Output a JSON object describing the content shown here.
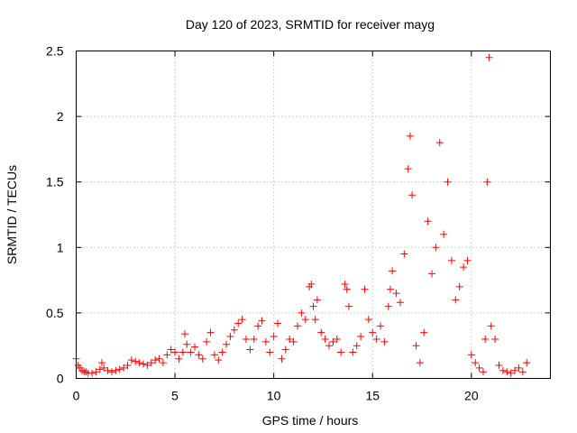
{
  "chart_data": {
    "type": "scatter",
    "title": "Day 120 of 2023, SRMTID for receiver mayg",
    "xlabel": "GPS time / hours",
    "ylabel": "SRMTID / TECUs",
    "xlim": [
      0,
      24
    ],
    "ylim": [
      0,
      2.5
    ],
    "xticks": [
      0,
      5,
      10,
      15,
      20
    ],
    "yticks": [
      0,
      0.5,
      1,
      1.5,
      2,
      2.5
    ],
    "xtick_labels": [
      "0",
      "5",
      "10",
      "15",
      "20"
    ],
    "ytick_labels": [
      "0",
      "0.5",
      "1",
      "1.5",
      "2",
      "2.5"
    ],
    "grid": true,
    "marker": "+",
    "color": "#ff0000",
    "series": [
      {
        "name": "SRMTID",
        "x": [
          0.0,
          0.1,
          0.2,
          0.3,
          0.4,
          0.5,
          0.6,
          0.8,
          1.0,
          1.2,
          1.3,
          1.4,
          1.6,
          1.8,
          2.0,
          2.2,
          2.4,
          2.6,
          2.8,
          3.0,
          3.2,
          3.4,
          3.6,
          3.8,
          4.0,
          4.2,
          4.4,
          4.6,
          4.8,
          5.0,
          5.2,
          5.4,
          5.5,
          5.6,
          5.8,
          6.0,
          6.2,
          6.4,
          6.6,
          6.8,
          7.0,
          7.2,
          7.4,
          7.6,
          7.8,
          8.0,
          8.2,
          8.4,
          8.6,
          8.8,
          9.0,
          9.2,
          9.4,
          9.6,
          9.8,
          10.0,
          10.2,
          10.4,
          10.6,
          10.8,
          11.0,
          11.2,
          11.4,
          11.6,
          11.8,
          11.9,
          12.0,
          12.1,
          12.2,
          12.4,
          12.6,
          12.8,
          13.0,
          13.2,
          13.4,
          13.6,
          13.7,
          13.8,
          14.0,
          14.2,
          14.4,
          14.6,
          14.8,
          15.0,
          15.2,
          15.4,
          15.6,
          15.8,
          15.9,
          16.0,
          16.2,
          16.4,
          16.6,
          16.8,
          16.9,
          17.0,
          17.2,
          17.4,
          17.6,
          17.8,
          18.0,
          18.2,
          18.4,
          18.6,
          18.8,
          19.0,
          19.2,
          19.4,
          19.6,
          19.8,
          20.0,
          20.2,
          20.4,
          20.6,
          20.7,
          20.8,
          20.9,
          21.0,
          21.2,
          21.4,
          21.6,
          21.8,
          22.0,
          22.2,
          22.4,
          22.6,
          22.8
        ],
        "y": [
          0.15,
          0.1,
          0.08,
          0.06,
          0.05,
          0.05,
          0.04,
          0.04,
          0.05,
          0.07,
          0.12,
          0.08,
          0.06,
          0.05,
          0.06,
          0.07,
          0.08,
          0.1,
          0.14,
          0.13,
          0.12,
          0.11,
          0.1,
          0.12,
          0.14,
          0.15,
          0.12,
          0.18,
          0.22,
          0.2,
          0.15,
          0.2,
          0.34,
          0.26,
          0.2,
          0.24,
          0.18,
          0.15,
          0.28,
          0.35,
          0.18,
          0.14,
          0.2,
          0.26,
          0.32,
          0.37,
          0.42,
          0.45,
          0.3,
          0.22,
          0.3,
          0.4,
          0.44,
          0.28,
          0.2,
          0.32,
          0.42,
          0.15,
          0.22,
          0.3,
          0.28,
          0.4,
          0.5,
          0.45,
          0.7,
          0.72,
          0.55,
          0.45,
          0.6,
          0.35,
          0.3,
          0.25,
          0.28,
          0.3,
          0.2,
          0.72,
          0.68,
          0.55,
          0.2,
          0.25,
          0.32,
          0.68,
          0.45,
          0.35,
          0.3,
          0.4,
          0.28,
          0.55,
          0.68,
          0.82,
          0.65,
          0.58,
          0.95,
          1.6,
          1.85,
          1.4,
          0.25,
          0.12,
          0.35,
          1.2,
          0.8,
          1.0,
          1.8,
          1.1,
          1.5,
          0.9,
          0.6,
          0.7,
          0.85,
          0.9,
          0.18,
          0.12,
          0.08,
          0.05,
          0.3,
          1.5,
          2.45,
          0.4,
          0.3,
          0.1,
          0.06,
          0.05,
          0.04,
          0.06,
          0.08,
          0.05,
          0.12
        ]
      }
    ]
  }
}
